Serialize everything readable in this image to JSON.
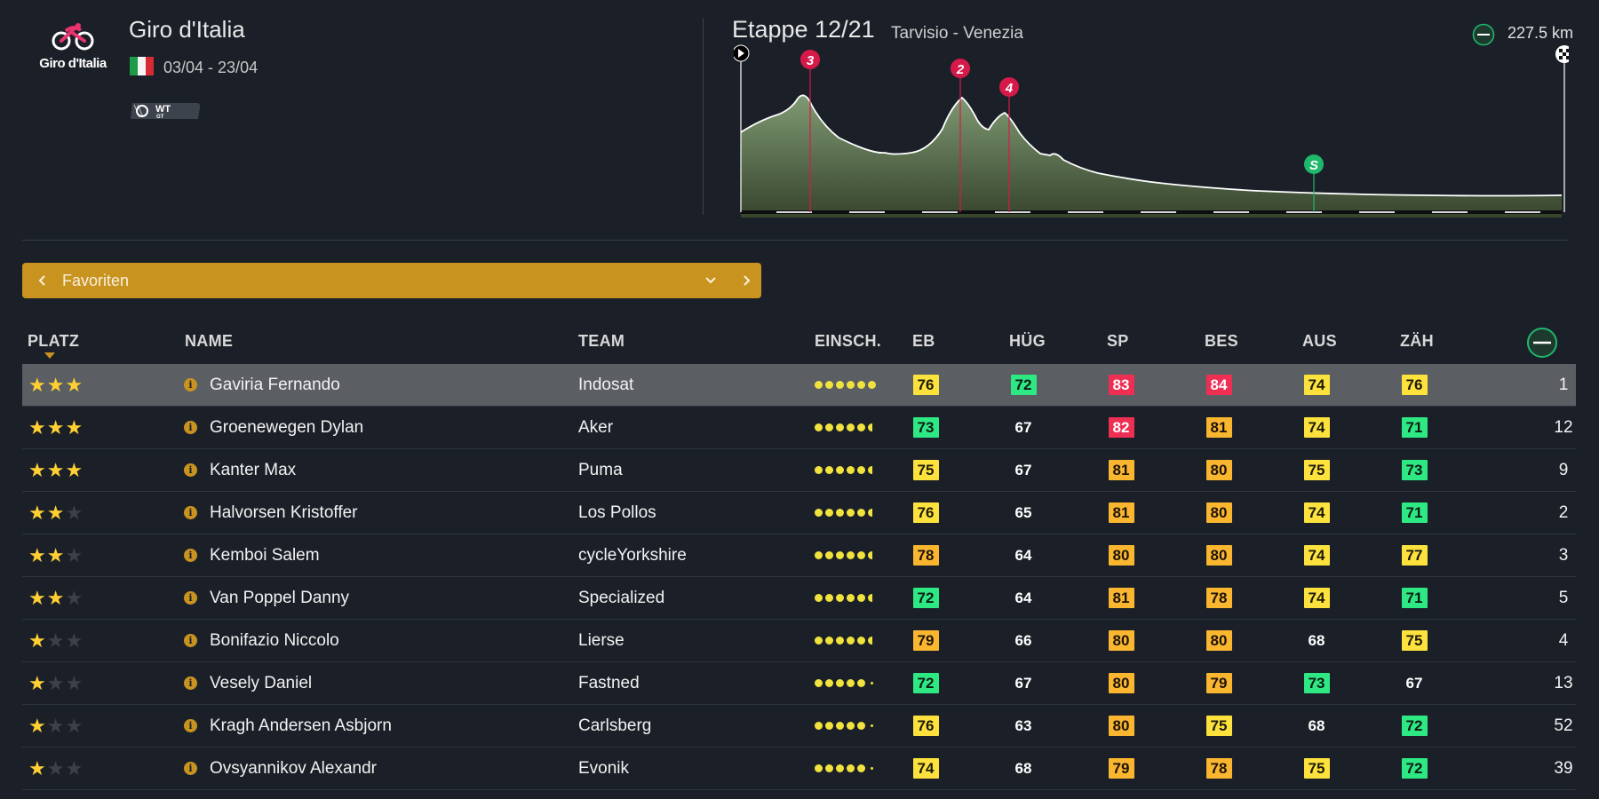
{
  "race": {
    "logo_text": "Giro d'Italia",
    "title": "Giro d'Italia",
    "dates": "03/04 - 23/04",
    "badge_text": "WT",
    "badge_subtext": "GT"
  },
  "stage": {
    "title": "Etappe 12/21",
    "route": "Tarvisio - Venezia",
    "distance": "227.5 km",
    "profile_markers": [
      {
        "label": "3",
        "kind": "climb"
      },
      {
        "label": "2",
        "kind": "climb"
      },
      {
        "label": "4",
        "kind": "climb"
      },
      {
        "label": "S",
        "kind": "sprint"
      }
    ]
  },
  "filter": {
    "label": "Favoriten"
  },
  "table": {
    "headers": {
      "platz": "PLATZ",
      "name": "NAME",
      "team": "TEAM",
      "einsch": "EINSCH.",
      "eb": "EB",
      "hug": "HÜG",
      "sp": "SP",
      "bes": "BES",
      "aus": "AUS",
      "zah": "ZÄH"
    },
    "rows": [
      {
        "stars": 3,
        "name": "Gaviria Fernando",
        "team": "Indosat",
        "form_dots": 6,
        "eb": 76,
        "hug": 72,
        "sp": 83,
        "bes": 84,
        "aus": 74,
        "zah": 76,
        "rank": "1",
        "selected": true,
        "colors": [
          "yellow",
          "green",
          "red",
          "red",
          "yellow",
          "yellow"
        ]
      },
      {
        "stars": 3,
        "name": "Groenewegen Dylan",
        "team": "Aker",
        "form_dots": 5.5,
        "eb": 73,
        "hug": 67,
        "sp": 82,
        "bes": 81,
        "aus": 74,
        "zah": 71,
        "rank": "12",
        "colors": [
          "green",
          "none",
          "red",
          "orange",
          "yellow",
          "green"
        ]
      },
      {
        "stars": 3,
        "name": "Kanter Max",
        "team": "Puma",
        "form_dots": 5.5,
        "eb": 75,
        "hug": 67,
        "sp": 81,
        "bes": 80,
        "aus": 75,
        "zah": 73,
        "rank": "9",
        "colors": [
          "yellow",
          "none",
          "orange",
          "orange",
          "yellow",
          "green"
        ]
      },
      {
        "stars": 2,
        "name": "Halvorsen Kristoffer",
        "team": "Los Pollos",
        "form_dots": 5.5,
        "eb": 76,
        "hug": 65,
        "sp": 81,
        "bes": 80,
        "aus": 74,
        "zah": 71,
        "rank": "2",
        "colors": [
          "yellow",
          "none",
          "orange",
          "orange",
          "yellow",
          "green"
        ]
      },
      {
        "stars": 2,
        "name": "Kemboi Salem",
        "team": "cycleYorkshire",
        "form_dots": 5.5,
        "eb": 78,
        "hug": 64,
        "sp": 80,
        "bes": 80,
        "aus": 74,
        "zah": 77,
        "rank": "3",
        "colors": [
          "orange",
          "none",
          "orange",
          "orange",
          "yellow",
          "yellow"
        ]
      },
      {
        "stars": 2,
        "name": "Van Poppel Danny",
        "team": "Specialized",
        "form_dots": 5.5,
        "eb": 72,
        "hug": 64,
        "sp": 81,
        "bes": 78,
        "aus": 74,
        "zah": 71,
        "rank": "5",
        "colors": [
          "green",
          "none",
          "orange",
          "orange",
          "yellow",
          "green"
        ]
      },
      {
        "stars": 1,
        "name": "Bonifazio Niccolo",
        "team": "Lierse",
        "form_dots": 5.5,
        "eb": 79,
        "hug": 66,
        "sp": 80,
        "bes": 80,
        "aus": 68,
        "zah": 75,
        "rank": "4",
        "colors": [
          "orange",
          "none",
          "orange",
          "orange",
          "none",
          "yellow"
        ]
      },
      {
        "stars": 1,
        "name": "Vesely Daniel",
        "team": "Fastned",
        "form_dots": 5,
        "eb": 72,
        "hug": 67,
        "sp": 80,
        "bes": 79,
        "aus": 73,
        "zah": 67,
        "rank": "13",
        "colors": [
          "green",
          "none",
          "orange",
          "orange",
          "green",
          "none"
        ]
      },
      {
        "stars": 1,
        "name": "Kragh Andersen Asbjorn",
        "team": "Carlsberg",
        "form_dots": 5,
        "eb": 76,
        "hug": 63,
        "sp": 80,
        "bes": 75,
        "aus": 68,
        "zah": 72,
        "rank": "52",
        "colors": [
          "yellow",
          "none",
          "orange",
          "yellow",
          "none",
          "green"
        ]
      },
      {
        "stars": 1,
        "name": "Ovsyannikov Alexandr",
        "team": "Evonik",
        "form_dots": 5,
        "eb": 74,
        "hug": 68,
        "sp": 79,
        "bes": 78,
        "aus": 75,
        "zah": 72,
        "rank": "39",
        "colors": [
          "yellow",
          "none",
          "orange",
          "orange",
          "yellow",
          "green"
        ]
      }
    ]
  },
  "colors": {
    "background": "#1b2028",
    "accent": "#c99320",
    "stat_green": "#2ee884",
    "stat_yellow": "#fde23d",
    "stat_orange": "#fbb630",
    "stat_red": "#ef2e54",
    "climb_marker": "#d7194a",
    "sprint_marker": "#1fb76b"
  }
}
